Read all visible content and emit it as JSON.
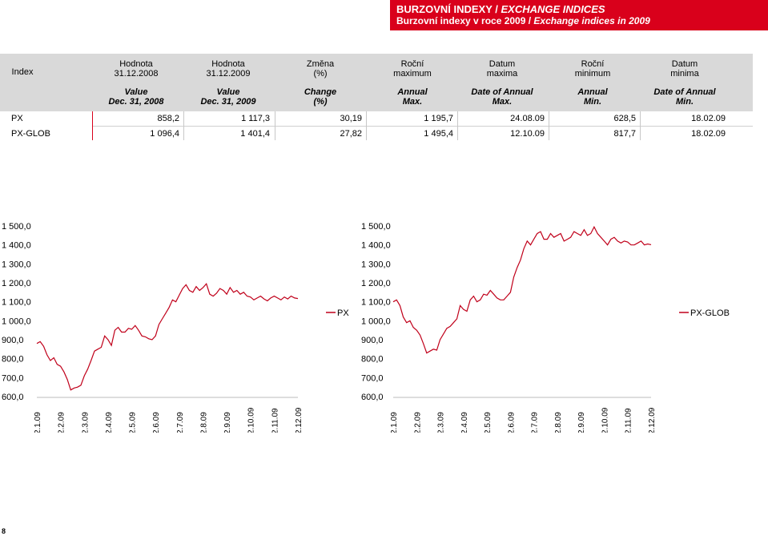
{
  "banner": {
    "title_prefix": "BURZOVNÍ INDEXY / ",
    "title_en": "EXCHANGE INDICES",
    "subtitle_prefix": "Burzovní indexy v roce 2009 / ",
    "subtitle_en": "Exchange indices in 2009"
  },
  "table": {
    "header_cz": [
      "Index",
      "Hodnota\n31.12.2008",
      "Hodnota\n31.12.2009",
      "Změna\n(%)",
      "Roční\nmaximum",
      "Datum\nmaxima",
      "Roční\nminimum",
      "Datum\nminima"
    ],
    "header_en": [
      "",
      "Value\nDec. 31, 2008",
      "Value\nDec. 31, 2009",
      "Change\n(%)",
      "Annual\nMax.",
      "Date of Annual\nMax.",
      "Annual\nMin.",
      "Date of Annual\nMin."
    ],
    "rows": [
      [
        "PX",
        "858,2",
        "1 117,3",
        "30,19",
        "1 195,7",
        "24.08.09",
        "628,5",
        "18.02.09"
      ],
      [
        "PX-GLOB",
        "1 096,4",
        "1 401,4",
        "27,82",
        "1 495,4",
        "12.10.09",
        "817,7",
        "18.02.09"
      ]
    ]
  },
  "chart_data": [
    {
      "type": "line",
      "title": "",
      "xlabel": "",
      "ylabel": "",
      "ylim": [
        600,
        1500
      ],
      "yticks": [
        "600,0",
        "700,0",
        "800,0",
        "900,0",
        "1 000,0",
        "1 100,0",
        "1 200,0",
        "1 300,0",
        "1 400,0",
        "1 500,0"
      ],
      "xticks": [
        "2.1.09",
        "2.2.09",
        "2.3.09",
        "2.4.09",
        "2.5.09",
        "2.6.09",
        "2.7.09",
        "2.8.09",
        "2.9.09",
        "2.10.09",
        "2.11.09",
        "2.12.09"
      ],
      "legend": "right",
      "color": "#c0001a",
      "series": [
        {
          "name": "PX",
          "x": [
            "2.1.09",
            "7.1.09",
            "12.1.09",
            "16.1.09",
            "21.1.09",
            "26.1.09",
            "30.1.09",
            "4.2.09",
            "9.2.09",
            "13.2.09",
            "18.2.09",
            "23.2.09",
            "27.2.09",
            "4.3.09",
            "9.3.09",
            "13.3.09",
            "18.3.09",
            "23.3.09",
            "27.3.09",
            "1.4.09",
            "6.4.09",
            "10.4.09",
            "15.4.09",
            "20.4.09",
            "24.4.09",
            "29.4.09",
            "4.5.09",
            "8.5.09",
            "13.5.09",
            "18.5.09",
            "22.5.09",
            "27.5.09",
            "1.6.09",
            "5.6.09",
            "10.6.09",
            "15.6.09",
            "19.6.09",
            "24.6.09",
            "29.6.09",
            "3.7.09",
            "8.7.09",
            "13.7.09",
            "17.7.09",
            "22.7.09",
            "27.7.09",
            "31.7.09",
            "5.8.09",
            "10.8.09",
            "14.8.09",
            "19.8.09",
            "24.8.09",
            "28.8.09",
            "2.9.09",
            "7.9.09",
            "11.9.09",
            "16.9.09",
            "21.9.09",
            "25.9.09",
            "30.9.09",
            "5.10.09",
            "9.10.09",
            "14.10.09",
            "19.10.09",
            "23.10.09",
            "28.10.09",
            "2.11.09",
            "6.11.09",
            "11.11.09",
            "16.11.09",
            "20.11.09",
            "25.11.09",
            "30.11.09",
            "4.12.09",
            "9.12.09",
            "14.12.09",
            "18.12.09",
            "23.12.09",
            "31.12.09"
          ],
          "values": [
            880,
            890,
            865,
            820,
            790,
            805,
            770,
            760,
            730,
            690,
            635,
            645,
            650,
            660,
            710,
            745,
            790,
            840,
            850,
            860,
            920,
            900,
            870,
            950,
            965,
            940,
            940,
            960,
            955,
            975,
            950,
            920,
            915,
            905,
            900,
            920,
            980,
            1010,
            1040,
            1070,
            1110,
            1100,
            1135,
            1170,
            1190,
            1160,
            1150,
            1180,
            1160,
            1175,
            1195,
            1140,
            1130,
            1145,
            1170,
            1160,
            1140,
            1175,
            1150,
            1160,
            1140,
            1150,
            1130,
            1125,
            1110,
            1120,
            1130,
            1115,
            1105,
            1120,
            1130,
            1120,
            1110,
            1125,
            1115,
            1130,
            1120,
            1117
          ]
        }
      ]
    },
    {
      "type": "line",
      "title": "",
      "xlabel": "",
      "ylabel": "",
      "ylim": [
        600,
        1500
      ],
      "yticks": [
        "600,0",
        "700,0",
        "800,0",
        "900,0",
        "1 000,0",
        "1 100,0",
        "1 200,0",
        "1 300,0",
        "1 400,0",
        "1 500,0"
      ],
      "xticks": [
        "2.1.09",
        "2.2.09",
        "2.3.09",
        "2.4.09",
        "2.5.09",
        "2.6.09",
        "2.7.09",
        "2.8.09",
        "2.9.09",
        "2.10.09",
        "2.11.09",
        "2.12.09"
      ],
      "legend": "right",
      "color": "#c0001a",
      "series": [
        {
          "name": "PX-GLOB",
          "x": [
            "2.1.09",
            "7.1.09",
            "12.1.09",
            "16.1.09",
            "21.1.09",
            "26.1.09",
            "30.1.09",
            "4.2.09",
            "9.2.09",
            "13.2.09",
            "18.2.09",
            "23.2.09",
            "27.2.09",
            "4.3.09",
            "9.3.09",
            "13.3.09",
            "18.3.09",
            "23.3.09",
            "27.3.09",
            "1.4.09",
            "6.4.09",
            "10.4.09",
            "15.4.09",
            "20.4.09",
            "24.4.09",
            "29.4.09",
            "4.5.09",
            "8.5.09",
            "13.5.09",
            "18.5.09",
            "22.5.09",
            "27.5.09",
            "1.6.09",
            "5.6.09",
            "10.6.09",
            "15.6.09",
            "19.6.09",
            "24.6.09",
            "29.6.09",
            "3.7.09",
            "8.7.09",
            "13.7.09",
            "17.7.09",
            "22.7.09",
            "27.7.09",
            "31.7.09",
            "5.8.09",
            "10.8.09",
            "14.8.09",
            "19.8.09",
            "24.8.09",
            "28.8.09",
            "2.9.09",
            "7.9.09",
            "11.9.09",
            "16.9.09",
            "21.9.09",
            "25.9.09",
            "30.9.09",
            "5.10.09",
            "9.10.09",
            "14.10.09",
            "19.10.09",
            "23.10.09",
            "28.10.09",
            "2.11.09",
            "6.11.09",
            "11.11.09",
            "16.11.09",
            "20.11.09",
            "25.11.09",
            "30.11.09",
            "4.12.09",
            "9.12.09",
            "14.12.09",
            "18.12.09",
            "23.12.09",
            "31.12.09"
          ],
          "values": [
            1100,
            1110,
            1080,
            1020,
            990,
            1000,
            965,
            950,
            925,
            880,
            830,
            840,
            850,
            845,
            900,
            930,
            960,
            970,
            990,
            1010,
            1080,
            1060,
            1050,
            1110,
            1130,
            1100,
            1110,
            1140,
            1135,
            1160,
            1140,
            1120,
            1110,
            1110,
            1130,
            1150,
            1230,
            1280,
            1320,
            1380,
            1420,
            1400,
            1430,
            1460,
            1470,
            1430,
            1430,
            1460,
            1440,
            1450,
            1460,
            1420,
            1430,
            1440,
            1470,
            1460,
            1450,
            1480,
            1450,
            1460,
            1495,
            1460,
            1440,
            1420,
            1400,
            1430,
            1440,
            1420,
            1410,
            1420,
            1415,
            1400,
            1400,
            1410,
            1420,
            1400,
            1405,
            1401
          ]
        }
      ]
    }
  ],
  "page_number": "8"
}
